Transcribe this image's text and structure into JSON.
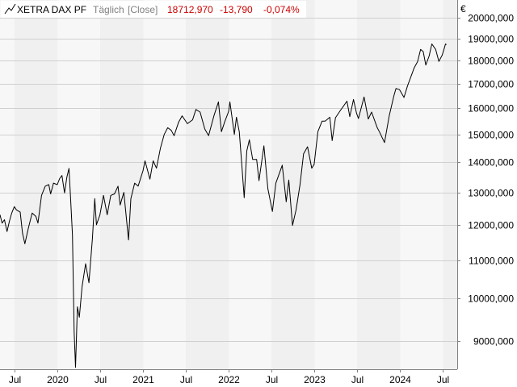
{
  "header": {
    "name": "XETRA DAX PF",
    "interval": "Täglich",
    "mode": "[Close]",
    "last": "18712,970",
    "change": "-13,790",
    "change_pct": "-0,074%",
    "currency": "€"
  },
  "colors": {
    "line": "#000000",
    "negative": "#cc0000",
    "band": "#f0f0f0",
    "plot_bg": "#f7f7f7",
    "grid": "#d0d0d0",
    "axis": "#808080"
  },
  "chart_data": {
    "type": "line",
    "scale": "log",
    "ylim": [
      8400,
      20900
    ],
    "xlim": [
      "2019-05-01",
      "2024-08-31"
    ],
    "y_ticks": [
      {
        "value": 9000,
        "label": "9000,000"
      },
      {
        "value": 10000,
        "label": "10000,000"
      },
      {
        "value": 11000,
        "label": "11000,000"
      },
      {
        "value": 12000,
        "label": "12000,000"
      },
      {
        "value": 13000,
        "label": "13000,000"
      },
      {
        "value": 14000,
        "label": "14000,000"
      },
      {
        "value": 15000,
        "label": "15000,000"
      },
      {
        "value": 16000,
        "label": "16000,000"
      },
      {
        "value": 17000,
        "label": "17000,000"
      },
      {
        "value": 18000,
        "label": "18000,000"
      },
      {
        "value": 19000,
        "label": "19000,000"
      },
      {
        "value": 20000,
        "label": "20000,000"
      }
    ],
    "x_ticks": [
      {
        "date": "2019-07-01",
        "label": "Jul"
      },
      {
        "date": "2020-01-01",
        "label": "2020"
      },
      {
        "date": "2020-07-01",
        "label": "Jul"
      },
      {
        "date": "2021-01-01",
        "label": "2021"
      },
      {
        "date": "2021-07-01",
        "label": "Jul"
      },
      {
        "date": "2022-01-01",
        "label": "2022"
      },
      {
        "date": "2022-07-01",
        "label": "Jul"
      },
      {
        "date": "2023-01-01",
        "label": "2023"
      },
      {
        "date": "2023-07-01",
        "label": "Jul"
      },
      {
        "date": "2024-01-01",
        "label": "2024"
      },
      {
        "date": "2024-07-01",
        "label": "Jul"
      }
    ],
    "grid": true,
    "series": [
      {
        "points": [
          [
            "2019-05-01",
            12300
          ],
          [
            "2019-05-10",
            12050
          ],
          [
            "2019-05-20",
            12150
          ],
          [
            "2019-05-31",
            11800
          ],
          [
            "2019-06-10",
            12100
          ],
          [
            "2019-06-20",
            12350
          ],
          [
            "2019-07-01",
            12550
          ],
          [
            "2019-07-10",
            12450
          ],
          [
            "2019-07-26",
            12380
          ],
          [
            "2019-08-05",
            11750
          ],
          [
            "2019-08-15",
            11450
          ],
          [
            "2019-08-30",
            11900
          ],
          [
            "2019-09-15",
            12350
          ],
          [
            "2019-10-01",
            12250
          ],
          [
            "2019-10-10",
            12050
          ],
          [
            "2019-10-25",
            12900
          ],
          [
            "2019-11-10",
            13200
          ],
          [
            "2019-11-25",
            13250
          ],
          [
            "2019-12-03",
            12950
          ],
          [
            "2019-12-15",
            13300
          ],
          [
            "2019-12-31",
            13250
          ],
          [
            "2020-01-10",
            13450
          ],
          [
            "2020-01-20",
            13550
          ],
          [
            "2020-01-31",
            12980
          ],
          [
            "2020-02-10",
            13500
          ],
          [
            "2020-02-19",
            13790
          ],
          [
            "2020-02-26",
            12800
          ],
          [
            "2020-03-05",
            11700
          ],
          [
            "2020-03-12",
            9200
          ],
          [
            "2020-03-18",
            8440
          ],
          [
            "2020-03-26",
            9800
          ],
          [
            "2020-04-03",
            9550
          ],
          [
            "2020-04-15",
            10300
          ],
          [
            "2020-04-30",
            10900
          ],
          [
            "2020-05-14",
            10400
          ],
          [
            "2020-05-29",
            11600
          ],
          [
            "2020-06-08",
            12800
          ],
          [
            "2020-06-15",
            12000
          ],
          [
            "2020-06-30",
            12300
          ],
          [
            "2020-07-15",
            12900
          ],
          [
            "2020-07-31",
            12300
          ],
          [
            "2020-08-15",
            12900
          ],
          [
            "2020-08-31",
            12950
          ],
          [
            "2020-09-15",
            13200
          ],
          [
            "2020-09-24",
            12600
          ],
          [
            "2020-10-10",
            13000
          ],
          [
            "2020-10-30",
            11560
          ],
          [
            "2020-11-09",
            12800
          ],
          [
            "2020-11-25",
            13300
          ],
          [
            "2020-12-10",
            13200
          ],
          [
            "2020-12-31",
            13720
          ],
          [
            "2021-01-08",
            14050
          ],
          [
            "2021-01-29",
            13430
          ],
          [
            "2021-02-12",
            14050
          ],
          [
            "2021-02-26",
            13800
          ],
          [
            "2021-03-15",
            14500
          ],
          [
            "2021-03-31",
            15000
          ],
          [
            "2021-04-15",
            15250
          ],
          [
            "2021-04-30",
            15150
          ],
          [
            "2021-05-12",
            14950
          ],
          [
            "2021-05-31",
            15450
          ],
          [
            "2021-06-15",
            15700
          ],
          [
            "2021-07-08",
            15400
          ],
          [
            "2021-07-30",
            15550
          ],
          [
            "2021-08-13",
            15950
          ],
          [
            "2021-08-31",
            15850
          ],
          [
            "2021-09-20",
            15200
          ],
          [
            "2021-10-06",
            14950
          ],
          [
            "2021-10-29",
            15700
          ],
          [
            "2021-11-17",
            16250
          ],
          [
            "2021-11-30",
            15100
          ],
          [
            "2021-12-15",
            15500
          ],
          [
            "2021-12-31",
            15880
          ],
          [
            "2022-01-05",
            16250
          ],
          [
            "2022-01-24",
            15000
          ],
          [
            "2022-02-02",
            15650
          ],
          [
            "2022-02-14",
            15100
          ],
          [
            "2022-02-24",
            14000
          ],
          [
            "2022-03-07",
            12830
          ],
          [
            "2022-03-18",
            14400
          ],
          [
            "2022-03-29",
            14800
          ],
          [
            "2022-04-12",
            14100
          ],
          [
            "2022-04-29",
            14100
          ],
          [
            "2022-05-09",
            13380
          ],
          [
            "2022-05-30",
            14580
          ],
          [
            "2022-06-16",
            13120
          ],
          [
            "2022-07-05",
            12400
          ],
          [
            "2022-07-20",
            13300
          ],
          [
            "2022-08-16",
            13900
          ],
          [
            "2022-09-02",
            12700
          ],
          [
            "2022-09-13",
            13400
          ],
          [
            "2022-09-29",
            11980
          ],
          [
            "2022-10-14",
            12450
          ],
          [
            "2022-10-31",
            13250
          ],
          [
            "2022-11-15",
            14300
          ],
          [
            "2022-12-02",
            14550
          ],
          [
            "2022-12-20",
            13800
          ],
          [
            "2022-12-30",
            13930
          ],
          [
            "2023-01-15",
            15100
          ],
          [
            "2023-02-02",
            15500
          ],
          [
            "2023-02-15",
            15500
          ],
          [
            "2023-03-07",
            15650
          ],
          [
            "2023-03-17",
            14770
          ],
          [
            "2023-03-31",
            15630
          ],
          [
            "2023-04-20",
            15900
          ],
          [
            "2023-05-19",
            16280
          ],
          [
            "2023-05-31",
            15670
          ],
          [
            "2023-06-16",
            16350
          ],
          [
            "2023-06-29",
            15800
          ],
          [
            "2023-07-07",
            15600
          ],
          [
            "2023-07-31",
            16450
          ],
          [
            "2023-08-18",
            15580
          ],
          [
            "2023-09-01",
            15850
          ],
          [
            "2023-09-25",
            15250
          ],
          [
            "2023-10-04",
            15100
          ],
          [
            "2023-10-26",
            14700
          ],
          [
            "2023-11-15",
            15700
          ],
          [
            "2023-12-05",
            16500
          ],
          [
            "2023-12-14",
            16800
          ],
          [
            "2023-12-29",
            16750
          ],
          [
            "2024-01-17",
            16430
          ],
          [
            "2024-02-01",
            16900
          ],
          [
            "2024-02-29",
            17670
          ],
          [
            "2024-03-15",
            17950
          ],
          [
            "2024-03-28",
            18500
          ],
          [
            "2024-04-08",
            18400
          ],
          [
            "2024-04-19",
            17800
          ],
          [
            "2024-05-03",
            18200
          ],
          [
            "2024-05-15",
            18750
          ],
          [
            "2024-05-31",
            18500
          ],
          [
            "2024-06-14",
            17960
          ],
          [
            "2024-06-28",
            18240
          ],
          [
            "2024-07-05",
            18480
          ],
          [
            "2024-07-12",
            18750
          ],
          [
            "2024-07-16",
            18713
          ]
        ]
      }
    ]
  }
}
